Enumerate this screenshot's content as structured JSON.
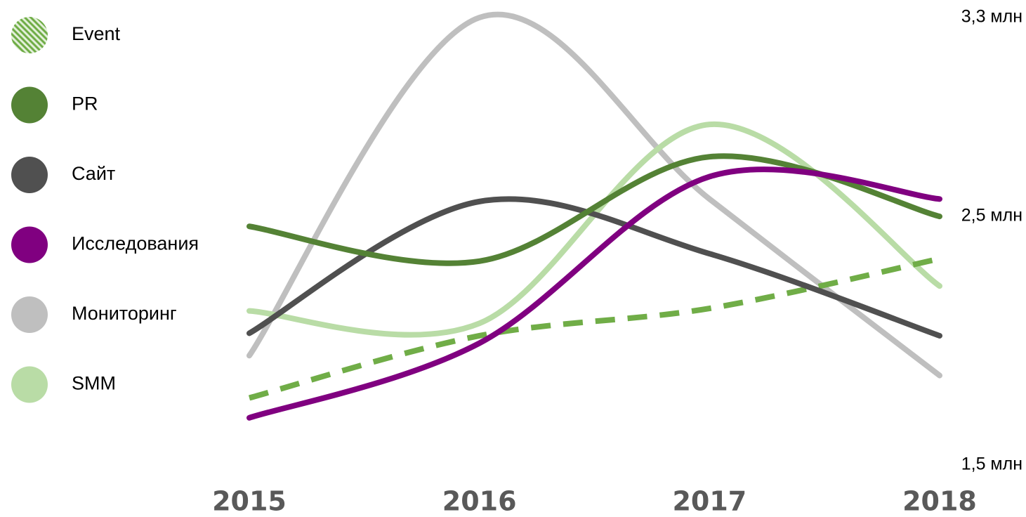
{
  "chart_data": {
    "type": "line",
    "categories": [
      "2015",
      "2016",
      "2017",
      "2018"
    ],
    "series": [
      {
        "name": "Event",
        "color": "#70ad47",
        "dashed": true,
        "values": [
          1.77,
          2.02,
          2.13,
          2.33
        ]
      },
      {
        "name": "PR",
        "color": "#548235",
        "values": [
          2.46,
          2.32,
          2.74,
          2.5
        ]
      },
      {
        "name": "Сайт",
        "color": "#505050",
        "values": [
          2.03,
          2.56,
          2.35,
          2.02
        ]
      },
      {
        "name": "Исследования",
        "color": "#800080",
        "values": [
          1.69,
          1.99,
          2.66,
          2.57
        ]
      },
      {
        "name": "Мониторинг",
        "color": "#bfbfbf",
        "values": [
          1.94,
          3.3,
          2.57,
          1.86
        ]
      },
      {
        "name": "SMM",
        "color": "#b9dca6",
        "values": [
          2.12,
          2.07,
          2.87,
          2.22
        ]
      }
    ],
    "ylim": [
      1.5,
      3.3
    ],
    "yticks": [
      {
        "value": 3.3,
        "label": "3,3 млн"
      },
      {
        "value": 2.5,
        "label": "2,5 млн"
      },
      {
        "value": 1.5,
        "label": "1,5 млн"
      }
    ],
    "legend": "left"
  }
}
